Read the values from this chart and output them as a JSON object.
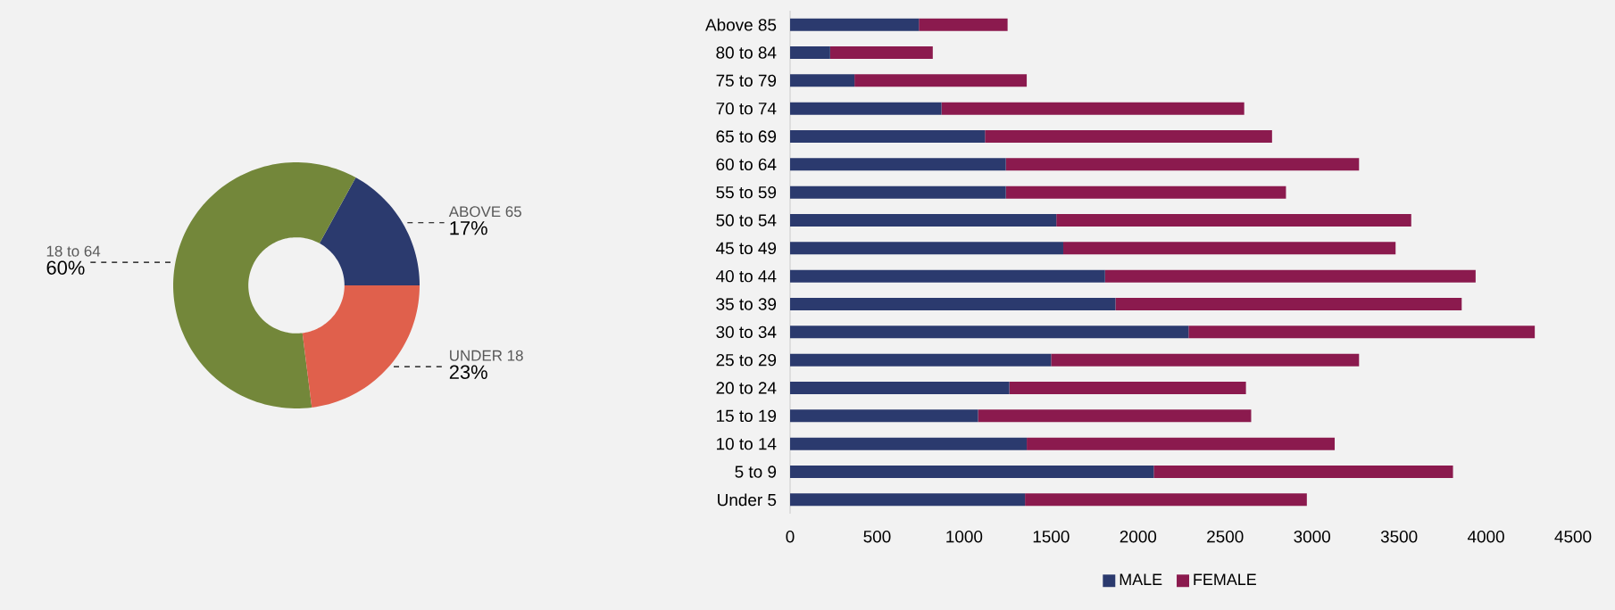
{
  "chart_data": [
    {
      "type": "donut",
      "categories": [
        "ABOVE 65",
        "18 to 64",
        "UNDER 18"
      ],
      "values": [
        17,
        60,
        23
      ],
      "value_labels": [
        "17%",
        "60%",
        "23%"
      ],
      "colors": [
        "#2b3a6e",
        "#73873a",
        "#e0604c"
      ]
    },
    {
      "type": "bar",
      "orientation": "horizontal",
      "stacked": true,
      "categories": [
        "Above 85",
        "80 to 84",
        "75 to 79",
        "70 to 74",
        "65 to 69",
        "60 to 64",
        "55 to 59",
        "50 to 54",
        "45 to 49",
        "40 to 44",
        "35 to 39",
        "30 to 34",
        "25 to 29",
        "20 to 24",
        "15 to 19",
        "10 to 14",
        "5 to 9",
        "Under 5"
      ],
      "series": [
        {
          "name": "MALE",
          "color": "#2b3a6e",
          "values": [
            740,
            230,
            370,
            870,
            1120,
            1240,
            1240,
            1530,
            1570,
            1810,
            1870,
            2290,
            1500,
            1260,
            1080,
            1360,
            2090,
            1350
          ]
        },
        {
          "name": "FEMALE",
          "color": "#8b1a4e",
          "values": [
            510,
            590,
            990,
            1740,
            1650,
            2030,
            1610,
            2040,
            1910,
            2130,
            1990,
            1990,
            1770,
            1360,
            1570,
            1770,
            1720,
            1620
          ]
        }
      ],
      "xlim": [
        0,
        4500
      ],
      "xticks": [
        0,
        500,
        1000,
        1500,
        2000,
        2500,
        3000,
        3500,
        4000,
        4500
      ],
      "legend": "bottom",
      "grid": false
    }
  ]
}
